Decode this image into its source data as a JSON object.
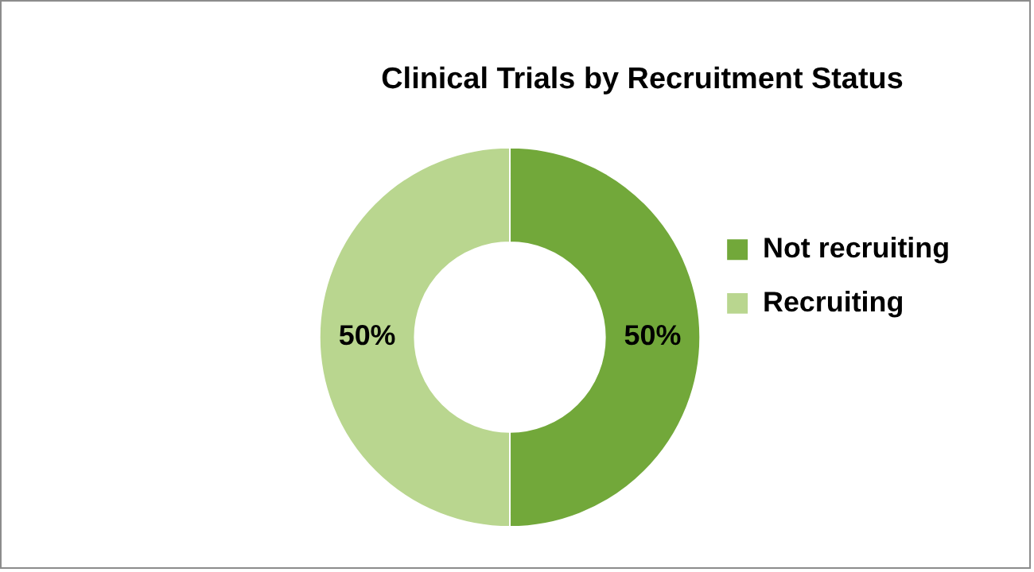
{
  "chart_data": {
    "type": "donut",
    "title": "Clinical Trials by Recruitment Status",
    "categories": [
      "Not recruiting",
      "Recruiting"
    ],
    "values": [
      50,
      50
    ],
    "colors": [
      "#72a83a",
      "#b9d68f"
    ],
    "value_labels": [
      "50%",
      "50%"
    ],
    "legend": "right"
  }
}
